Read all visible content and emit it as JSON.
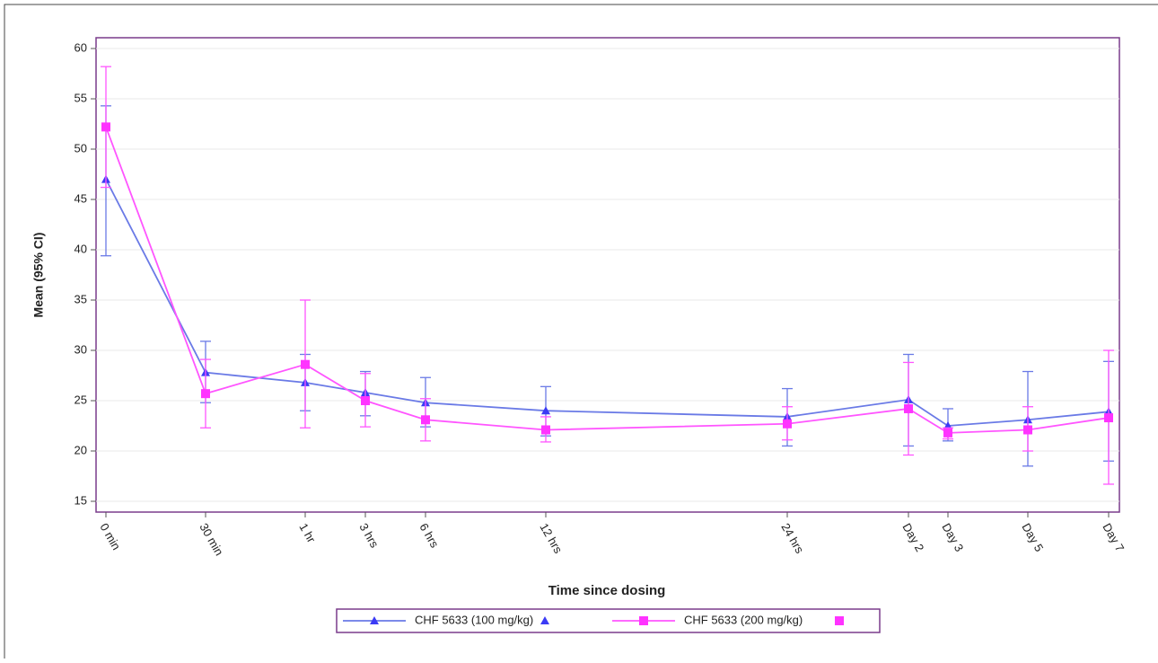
{
  "chart_data": {
    "type": "line",
    "x_label": "Time since dosing",
    "y_label": "Mean (95% CI)",
    "categories": [
      "0 min",
      "30 min",
      "1 hr",
      "3 hrs",
      "6 hrs",
      "12 hrs",
      "24 hrs",
      "Day 2",
      "Day 3",
      "Day 5",
      "Day 7"
    ],
    "series": [
      {
        "name": "CHF 5633 (100 mg/kg)",
        "color": "#3b3bf5",
        "line_color": "#6a7ae6",
        "marker": "triangle",
        "values": [
          47.0,
          27.8,
          26.8,
          25.8,
          24.8,
          24.0,
          23.4,
          25.1,
          22.5,
          23.1,
          23.9
        ],
        "lower": [
          39.4,
          24.8,
          24.0,
          23.5,
          22.4,
          21.5,
          20.5,
          20.5,
          21.0,
          18.5,
          19.0
        ],
        "upper": [
          54.3,
          30.9,
          29.6,
          27.9,
          27.3,
          26.4,
          26.2,
          29.6,
          24.2,
          27.9,
          28.9
        ]
      },
      {
        "name": "CHF 5633 (200 mg/kg)",
        "color": "#ff33ff",
        "line_color": "#ff55ff",
        "marker": "square",
        "values": [
          52.2,
          25.7,
          28.6,
          25.0,
          23.1,
          22.1,
          22.7,
          24.2,
          21.8,
          22.1,
          23.3
        ],
        "lower": [
          46.2,
          22.3,
          22.3,
          22.4,
          21.0,
          20.9,
          21.1,
          19.6,
          21.2,
          20.0,
          16.7
        ],
        "upper": [
          58.2,
          29.1,
          35.0,
          27.7,
          25.2,
          23.4,
          24.4,
          28.8,
          22.3,
          24.4,
          30.0
        ]
      }
    ],
    "ylim": [
      13.93,
      61.07
    ],
    "yticks": [
      15,
      20,
      25,
      30,
      35,
      40,
      45,
      50,
      55,
      60
    ],
    "grid": true
  }
}
